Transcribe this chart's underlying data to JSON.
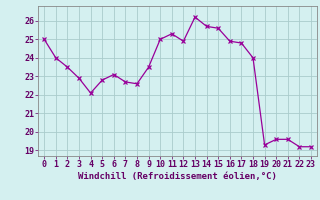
{
  "x": [
    0,
    1,
    2,
    3,
    4,
    5,
    6,
    7,
    8,
    9,
    10,
    11,
    12,
    13,
    14,
    15,
    16,
    17,
    18,
    19,
    20,
    21,
    22,
    23
  ],
  "y": [
    25.0,
    24.0,
    23.5,
    22.9,
    22.1,
    22.8,
    23.1,
    22.7,
    22.6,
    23.5,
    25.0,
    25.3,
    24.9,
    26.2,
    25.7,
    25.6,
    24.9,
    24.8,
    24.0,
    19.3,
    19.6,
    19.6,
    19.2,
    19.2
  ],
  "line_color": "#990099",
  "marker": "x",
  "marker_size": 3,
  "bg_color": "#d4f0f0",
  "grid_color": "#aacccc",
  "xlabel": "Windchill (Refroidissement éolien,°C)",
  "xlabel_color": "#660066",
  "xlabel_fontsize": 6.5,
  "ylabel_ticks": [
    19,
    20,
    21,
    22,
    23,
    24,
    25,
    26
  ],
  "xlim": [
    -0.5,
    23.5
  ],
  "ylim": [
    18.7,
    26.8
  ],
  "tick_fontsize": 6,
  "spine_color": "#888888"
}
